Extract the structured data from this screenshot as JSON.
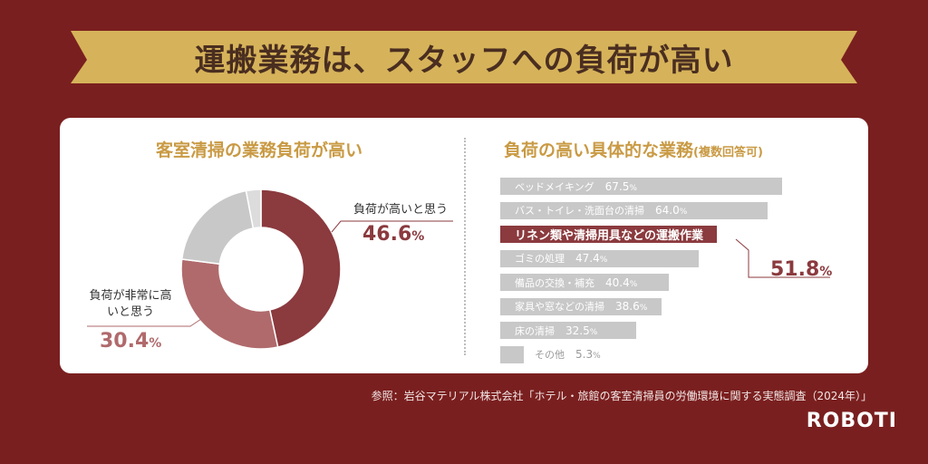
{
  "header": {
    "title": "運搬業務は、スタッフへの負荷が高い"
  },
  "colors": {
    "background": "#7a1f1f",
    "banner": "#d6b35a",
    "accent_gold": "#c99a44",
    "dark_red": "#8b3a3e",
    "mid_red": "#b06a6c",
    "gray": "#c8c8c8",
    "light_gray": "#dcdcdc"
  },
  "left_panel": {
    "title": "客室清掃の業務負荷が高い",
    "label_high": "負荷が高いと思う",
    "value_high": "46.6",
    "label_very_high": "負荷が非常に高いと思う",
    "value_very_high": "30.4",
    "pct_sign": "%"
  },
  "right_panel": {
    "title": "負荷の高い具体的な業務",
    "title_sub": "(複数回答可)",
    "highlight_value": "51.8",
    "pct_sign": "%"
  },
  "chart_data": [
    {
      "type": "pie",
      "title": "客室清掃の業務負荷が高い",
      "categories": [
        "負荷が高いと思う",
        "負荷が非常に高いと思う",
        "",
        ""
      ],
      "values": [
        46.6,
        30.4,
        20.0,
        3.0
      ]
    },
    {
      "type": "bar",
      "orientation": "horizontal",
      "title": "負荷の高い具体的な業務(複数回答可)",
      "categories": [
        "ベッドメイキング",
        "バス・トイレ・洗面台の清掃",
        "リネン類や清掃用具などの運搬作業",
        "ゴミの処理",
        "備品の交換・補充",
        "家具や窓などの清掃",
        "床の清掃",
        "その他"
      ],
      "values": [
        67.5,
        64.0,
        51.8,
        47.4,
        40.4,
        38.6,
        32.5,
        5.3
      ],
      "value_labels": [
        "67.5",
        "64.0",
        "",
        "47.4",
        "40.4",
        "38.6",
        "32.5",
        "5.3"
      ],
      "highlight_index": 2,
      "xlim": [
        0,
        75
      ]
    }
  ],
  "source": "参照：岩谷マテリアル株式会社「ホテル・旅館の客室清掃員の労働環境に関する実態調査（2024年）」",
  "brand": "ROBOTI"
}
